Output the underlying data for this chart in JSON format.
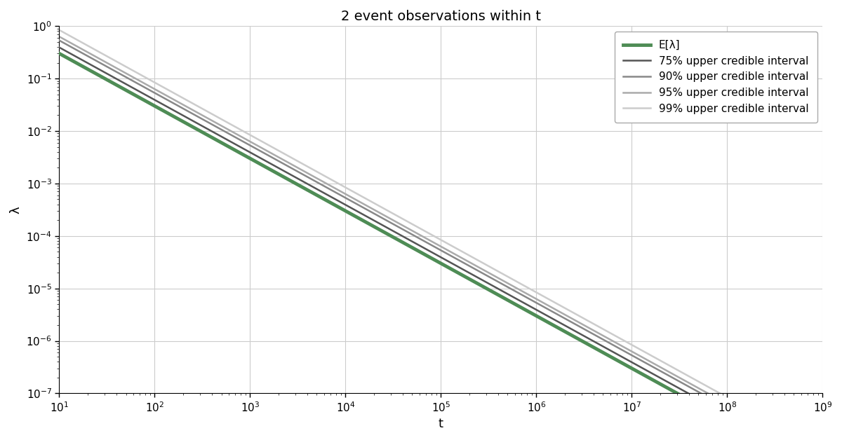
{
  "title": "2 event observations within t",
  "xlabel": "t",
  "ylabel": "λ",
  "k": 2,
  "t_min": 10,
  "t_max": 1000000000.0,
  "lambda_min": 1e-07,
  "lambda_max": 1,
  "n_points": 500,
  "credible_levels": [
    0.75,
    0.9,
    0.95,
    0.99
  ],
  "credible_labels": [
    "75% upper credible interval",
    "90% upper credible interval",
    "95% upper credible interval",
    "99% upper credible interval"
  ],
  "credible_colors": [
    "#555555",
    "#888888",
    "#aaaaaa",
    "#cccccc"
  ],
  "credible_linewidths": [
    1.8,
    1.8,
    1.8,
    1.8
  ],
  "mean_color": "#4e8c55",
  "mean_label": "E[λ]",
  "mean_linewidth": 3.5,
  "background_color": "#ffffff",
  "grid_color": "#cccccc",
  "title_fontsize": 14,
  "label_fontsize": 13,
  "tick_fontsize": 11
}
